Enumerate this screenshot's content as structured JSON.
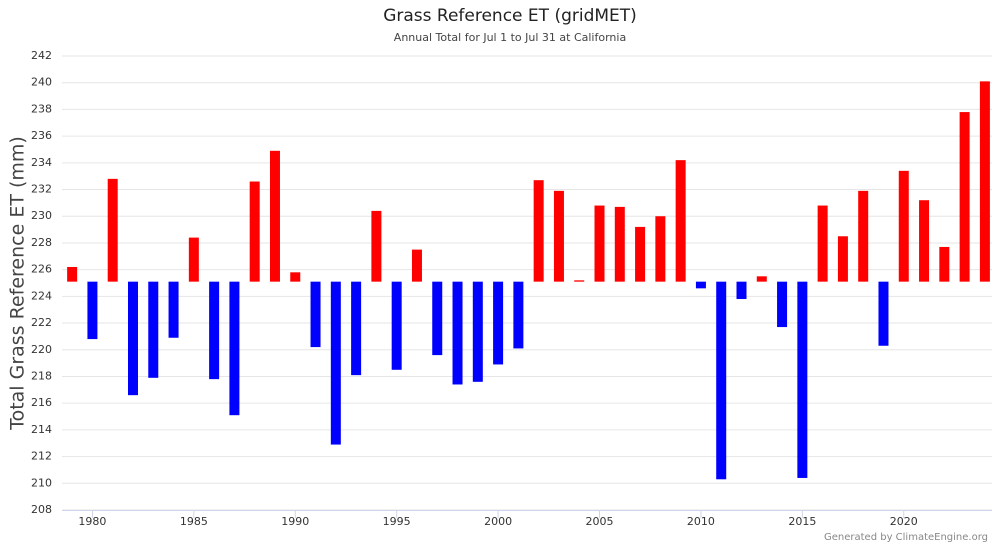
{
  "chart_data": {
    "type": "bar",
    "title": "Grass Reference ET (gridMET)",
    "subtitle": "Annual Total for Jul 1 to Jul 31 at California",
    "y_label": "Total Grass Reference ET (mm)",
    "credit": "Generated by ClimateEngine.org",
    "x": [
      1979,
      1980,
      1981,
      1982,
      1983,
      1984,
      1985,
      1986,
      1987,
      1988,
      1989,
      1990,
      1991,
      1992,
      1993,
      1994,
      1995,
      1996,
      1997,
      1998,
      1999,
      2000,
      2001,
      2002,
      2003,
      2004,
      2005,
      2006,
      2007,
      2008,
      2009,
      2010,
      2011,
      2012,
      2013,
      2014,
      2015,
      2016,
      2017,
      2018,
      2019,
      2020,
      2021,
      2022,
      2023,
      2024
    ],
    "values": [
      226.2,
      220.8,
      232.8,
      216.6,
      217.9,
      220.9,
      228.4,
      217.8,
      215.1,
      232.6,
      234.9,
      225.8,
      220.2,
      212.9,
      218.1,
      230.4,
      218.5,
      227.5,
      219.6,
      217.4,
      217.6,
      218.9,
      220.1,
      232.7,
      231.9,
      225.2,
      230.8,
      230.7,
      229.2,
      230.0,
      234.2,
      224.6,
      210.3,
      223.8,
      225.5,
      221.7,
      210.4,
      230.8,
      228.5,
      231.9,
      220.3,
      233.4,
      231.2,
      227.7,
      237.8,
      240.1
    ],
    "baseline": 225.1,
    "above_color": "#ff0000",
    "below_color": "#0000ff",
    "xlim": [
      1978.5,
      2024.35
    ],
    "xticks": [
      1980,
      1985,
      1990,
      1995,
      2000,
      2005,
      2010,
      2015,
      2020
    ],
    "ylim": [
      208,
      242
    ],
    "yticks": [
      208,
      210,
      212,
      214,
      216,
      218,
      220,
      222,
      224,
      226,
      228,
      230,
      232,
      234,
      236,
      238,
      240,
      242
    ],
    "grid": true
  }
}
